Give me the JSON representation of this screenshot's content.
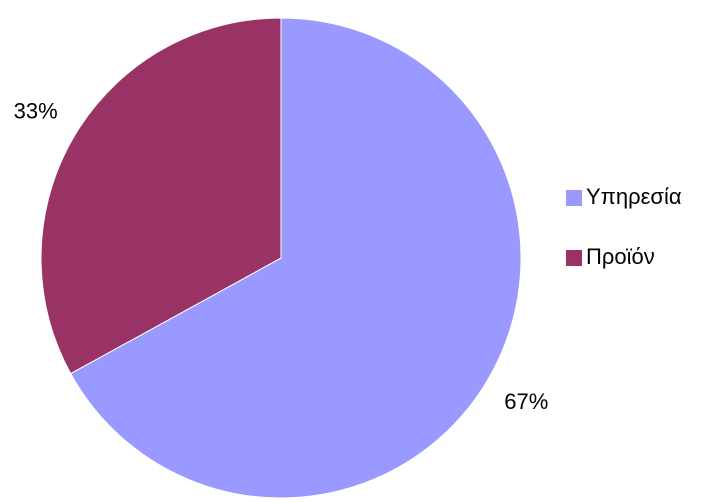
{
  "chart_data": {
    "type": "pie",
    "categories": [
      "Υπηρεσία",
      "Προϊόν"
    ],
    "values": [
      67,
      33
    ],
    "value_labels": [
      "67%",
      "33%"
    ],
    "colors": [
      "#9999ff",
      "#993366"
    ],
    "legend": "right"
  }
}
